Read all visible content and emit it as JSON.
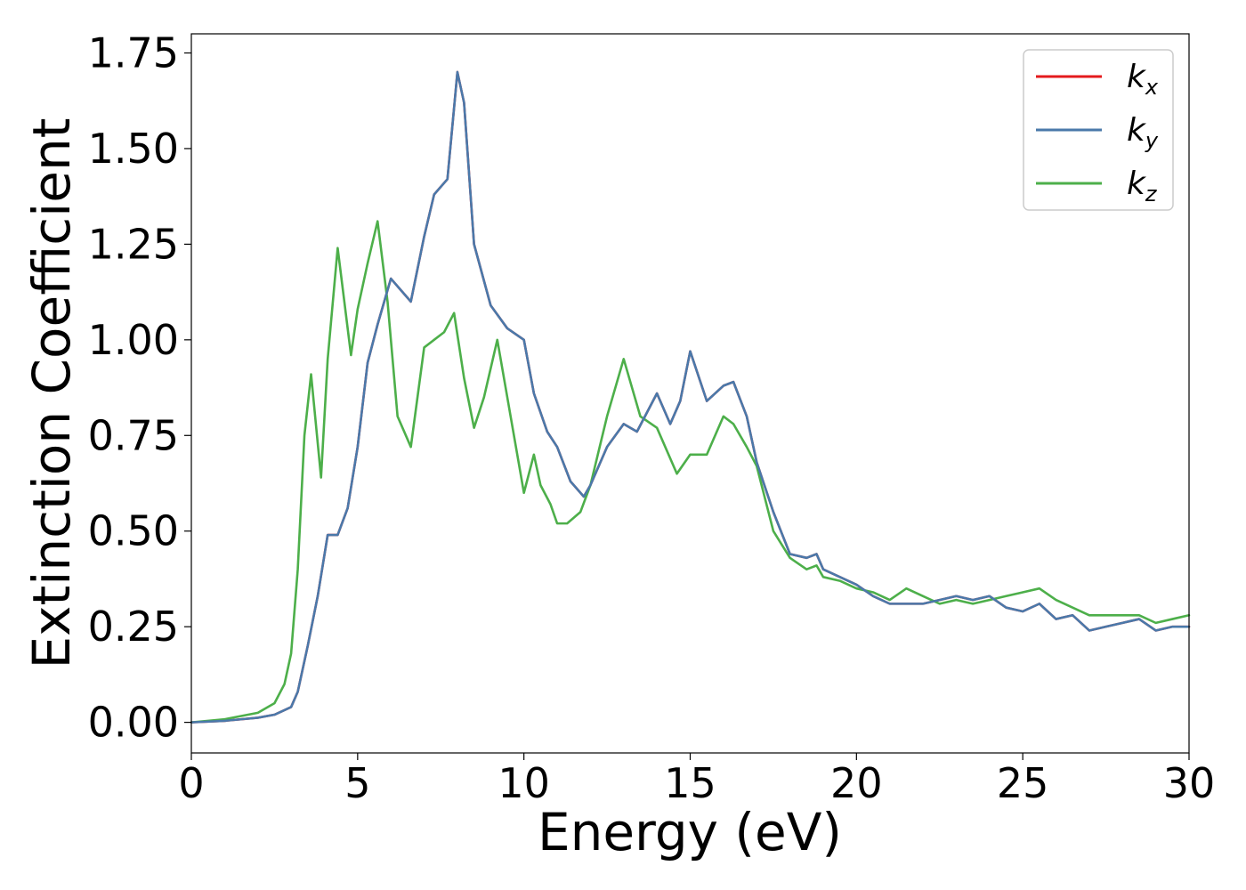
{
  "chart_data": {
    "type": "line",
    "title": "",
    "xlabel": "Energy (eV)",
    "ylabel": "Extinction Coefficient",
    "xlim": [
      0,
      30
    ],
    "ylim": [
      -0.08,
      1.8
    ],
    "xticks": [
      0,
      5,
      10,
      15,
      20,
      25,
      30
    ],
    "xtick_labels": [
      "0",
      "5",
      "10",
      "15",
      "20",
      "25",
      "30"
    ],
    "yticks": [
      0.0,
      0.25,
      0.5,
      0.75,
      1.0,
      1.25,
      1.5,
      1.75
    ],
    "ytick_labels": [
      "0.00",
      "0.25",
      "0.50",
      "0.75",
      "1.00",
      "1.25",
      "1.50",
      "1.75"
    ],
    "grid": false,
    "legend_position": "top-right",
    "legend_labels": [
      {
        "base": "k",
        "sub": "x"
      },
      {
        "base": "k",
        "sub": "y"
      },
      {
        "base": "k",
        "sub": "z"
      }
    ],
    "series": [
      {
        "color": "#e41a1c",
        "x": [
          0,
          1,
          2,
          2.5,
          3,
          3.2,
          3.5,
          3.8,
          4.1,
          4.4,
          4.7,
          5,
          5.3,
          5.6,
          6,
          6.3,
          6.6,
          7,
          7.3,
          7.7,
          8,
          8.2,
          8.5,
          9,
          9.5,
          10,
          10.3,
          10.7,
          11,
          11.4,
          11.8,
          12,
          12.5,
          13,
          13.4,
          14,
          14.4,
          14.7,
          15,
          15.5,
          16,
          16.3,
          16.7,
          17,
          17.5,
          18,
          18.5,
          18.8,
          19,
          19.5,
          20,
          20.5,
          21,
          21.5,
          22,
          22.5,
          23,
          23.5,
          24,
          24.5,
          25,
          25.5,
          26,
          26.5,
          27,
          27.5,
          28,
          28.5,
          29,
          29.5,
          30
        ],
        "y": [
          0,
          0.004,
          0.012,
          0.02,
          0.04,
          0.08,
          0.2,
          0.33,
          0.49,
          0.49,
          0.56,
          0.72,
          0.94,
          1.04,
          1.16,
          1.13,
          1.1,
          1.27,
          1.38,
          1.42,
          1.7,
          1.62,
          1.25,
          1.09,
          1.03,
          1.0,
          0.86,
          0.76,
          0.72,
          0.63,
          0.59,
          0.62,
          0.72,
          0.78,
          0.76,
          0.86,
          0.78,
          0.84,
          0.97,
          0.84,
          0.88,
          0.89,
          0.8,
          0.68,
          0.55,
          0.44,
          0.43,
          0.44,
          0.4,
          0.38,
          0.36,
          0.33,
          0.31,
          0.31,
          0.31,
          0.32,
          0.33,
          0.32,
          0.33,
          0.3,
          0.29,
          0.31,
          0.27,
          0.28,
          0.24,
          0.25,
          0.26,
          0.27,
          0.24,
          0.25,
          0.25
        ]
      },
      {
        "color": "#4a79aa",
        "x": [
          0,
          1,
          2,
          2.5,
          3,
          3.2,
          3.5,
          3.8,
          4.1,
          4.4,
          4.7,
          5,
          5.3,
          5.6,
          6,
          6.3,
          6.6,
          7,
          7.3,
          7.7,
          8,
          8.2,
          8.5,
          9,
          9.5,
          10,
          10.3,
          10.7,
          11,
          11.4,
          11.8,
          12,
          12.5,
          13,
          13.4,
          14,
          14.4,
          14.7,
          15,
          15.5,
          16,
          16.3,
          16.7,
          17,
          17.5,
          18,
          18.5,
          18.8,
          19,
          19.5,
          20,
          20.5,
          21,
          21.5,
          22,
          22.5,
          23,
          23.5,
          24,
          24.5,
          25,
          25.5,
          26,
          26.5,
          27,
          27.5,
          28,
          28.5,
          29,
          29.5,
          30
        ],
        "y": [
          0,
          0.004,
          0.012,
          0.02,
          0.04,
          0.08,
          0.2,
          0.33,
          0.49,
          0.49,
          0.56,
          0.72,
          0.94,
          1.04,
          1.16,
          1.13,
          1.1,
          1.27,
          1.38,
          1.42,
          1.7,
          1.62,
          1.25,
          1.09,
          1.03,
          1.0,
          0.86,
          0.76,
          0.72,
          0.63,
          0.59,
          0.62,
          0.72,
          0.78,
          0.76,
          0.86,
          0.78,
          0.84,
          0.97,
          0.84,
          0.88,
          0.89,
          0.8,
          0.68,
          0.55,
          0.44,
          0.43,
          0.44,
          0.4,
          0.38,
          0.36,
          0.33,
          0.31,
          0.31,
          0.31,
          0.32,
          0.33,
          0.32,
          0.33,
          0.3,
          0.29,
          0.31,
          0.27,
          0.28,
          0.24,
          0.25,
          0.26,
          0.27,
          0.24,
          0.25,
          0.25
        ]
      },
      {
        "color": "#4daf4a",
        "x": [
          0,
          1,
          2,
          2.5,
          2.8,
          3,
          3.2,
          3.4,
          3.6,
          3.9,
          4.1,
          4.4,
          4.8,
          5,
          5.3,
          5.6,
          5.9,
          6.2,
          6.6,
          7,
          7.3,
          7.6,
          7.9,
          8.2,
          8.5,
          8.8,
          9.2,
          9.6,
          10,
          10.3,
          10.5,
          10.8,
          11,
          11.3,
          11.7,
          12,
          12.5,
          13,
          13.5,
          14,
          14.6,
          15,
          15.5,
          16,
          16.3,
          16.7,
          17,
          17.5,
          18,
          18.5,
          18.8,
          19,
          19.5,
          20,
          20.5,
          21,
          21.5,
          22,
          22.5,
          23,
          23.5,
          24,
          24.5,
          25,
          25.5,
          26,
          26.5,
          27,
          27.5,
          28,
          28.5,
          29,
          29.5,
          30
        ],
        "y": [
          0,
          0.008,
          0.025,
          0.05,
          0.1,
          0.18,
          0.4,
          0.75,
          0.91,
          0.64,
          0.95,
          1.24,
          0.96,
          1.08,
          1.2,
          1.31,
          1.1,
          0.8,
          0.72,
          0.98,
          1.0,
          1.02,
          1.07,
          0.9,
          0.77,
          0.85,
          1.0,
          0.8,
          0.6,
          0.7,
          0.62,
          0.57,
          0.52,
          0.52,
          0.55,
          0.62,
          0.8,
          0.95,
          0.8,
          0.77,
          0.65,
          0.7,
          0.7,
          0.8,
          0.78,
          0.72,
          0.67,
          0.5,
          0.43,
          0.4,
          0.41,
          0.38,
          0.37,
          0.35,
          0.34,
          0.32,
          0.35,
          0.33,
          0.31,
          0.32,
          0.31,
          0.32,
          0.33,
          0.34,
          0.35,
          0.32,
          0.3,
          0.28,
          0.28,
          0.28,
          0.28,
          0.26,
          0.27,
          0.28
        ]
      }
    ]
  }
}
